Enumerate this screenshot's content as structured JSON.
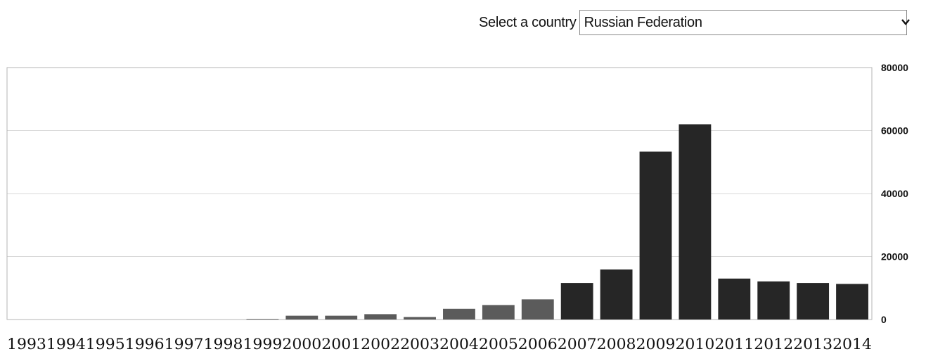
{
  "selector": {
    "label": "Select a country",
    "value": "Russian Federation"
  },
  "icons": {
    "dropdown": "chevron-down-icon"
  },
  "colors": {
    "bar_light": "#5b5b5b",
    "bar_dark": "#262626",
    "grid": "#d8d8d8",
    "frame": "#b5b5b5"
  },
  "chart_data": {
    "type": "bar",
    "title": "",
    "xlabel": "",
    "ylabel": "",
    "categories": [
      "1993",
      "1994",
      "1995",
      "1996",
      "1997",
      "1998",
      "1999",
      "2000",
      "2001",
      "2002",
      "2003",
      "2004",
      "2005",
      "2006",
      "2007",
      "2008",
      "2009",
      "2010",
      "2011",
      "2012",
      "2013",
      "2014"
    ],
    "values": [
      0,
      0,
      0,
      0,
      0,
      0,
      200,
      1200,
      1200,
      1700,
      800,
      3400,
      4600,
      6400,
      11600,
      15900,
      53300,
      62000,
      13000,
      12100,
      11600,
      11300
    ],
    "ylim": [
      0,
      80000
    ],
    "yticks": [
      "0",
      "20000",
      "40000",
      "60000",
      "80000"
    ],
    "grid": true,
    "y_axis_side": "right"
  }
}
